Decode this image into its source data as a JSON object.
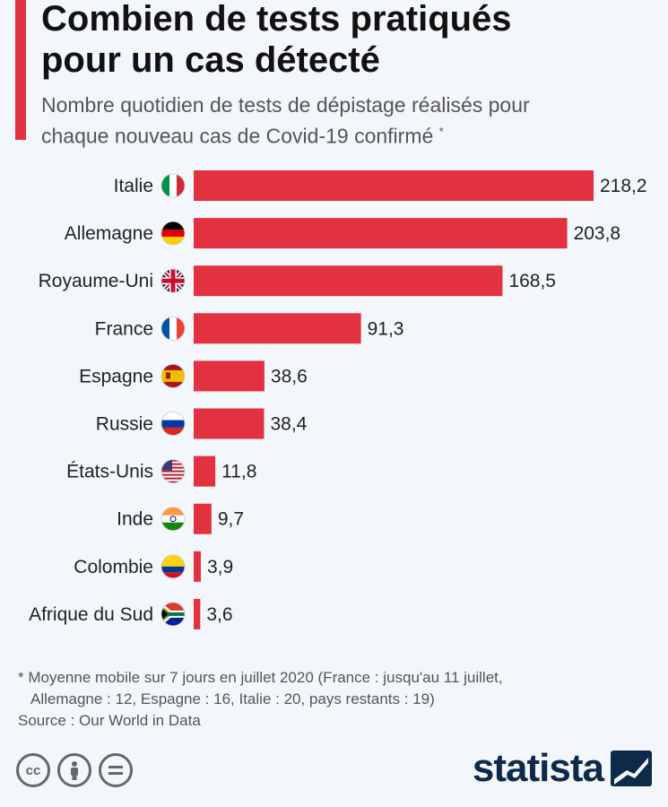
{
  "colors": {
    "accent": "#e2313f",
    "bar": "#e2313f",
    "brand": "#0d2a4a"
  },
  "header": {
    "title_line1": "Combien de tests pratiqués",
    "title_line2": "pour un cas détecté",
    "subtitle_line1": "Nombre quotidien de tests de dépistage réalisés pour",
    "subtitle_line2": "chaque nouveau cas de Covid-19 confirmé",
    "subtitle_mark": "*"
  },
  "chart_data": {
    "type": "bar",
    "orientation": "horizontal",
    "categories": [
      "Italie",
      "Allemagne",
      "Royaume-Uni",
      "France",
      "Espagne",
      "Russie",
      "États-Unis",
      "Inde",
      "Colombie",
      "Afrique du Sud"
    ],
    "values": [
      218.2,
      203.8,
      168.5,
      91.3,
      38.6,
      38.4,
      11.8,
      9.7,
      3.9,
      3.6
    ],
    "value_labels": [
      "218,2",
      "203,8",
      "168,5",
      "91,3",
      "38,6",
      "38,4",
      "11,8",
      "9,7",
      "3,9",
      "3,6"
    ],
    "flags": [
      "italy-flag-icon",
      "germany-flag-icon",
      "uk-flag-icon",
      "france-flag-icon",
      "spain-flag-icon",
      "russia-flag-icon",
      "usa-flag-icon",
      "india-flag-icon",
      "colombia-flag-icon",
      "south-africa-flag-icon"
    ],
    "grid": false
  },
  "footer": {
    "footnote_line1": "* Moyenne mobile sur 7 jours en juillet 2020 (France : jusqu'au 11 juillet,",
    "footnote_line2": "Allemagne : 12, Espagne : 16, Italie : 20, pays restants : 19)",
    "source": "Source : Our World in Data",
    "brand": "statista",
    "license_icons": [
      "cc-icon",
      "attribution-icon",
      "no-derivatives-icon"
    ]
  }
}
